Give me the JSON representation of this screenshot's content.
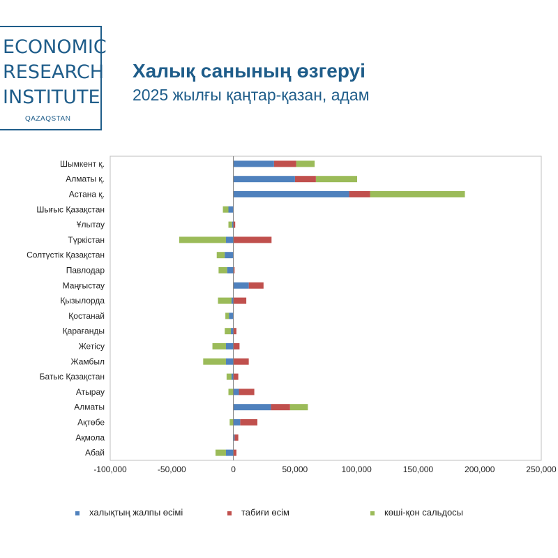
{
  "logo": {
    "lines": [
      "ECONOMIC",
      "RESEARCH",
      "INSTITUTE"
    ],
    "sub": "QAZAQSTAN"
  },
  "header": {
    "title": "Халық санының өзгеруі",
    "subtitle": "2025 жылғы қаңтар-қазан, адам"
  },
  "colors": {
    "total": "#4f81bd",
    "natural": "#c0504d",
    "migration": "#9bbb59",
    "brand": "#1f5d8a"
  },
  "chart_data": {
    "type": "bar",
    "orientation": "horizontal",
    "stacked": true,
    "title": "Халық санының өзгеруі",
    "subtitle": "2025 жылғы қаңтар-қазан, адам",
    "xlim": [
      -100000,
      250000
    ],
    "xticks": [
      -100000,
      -50000,
      0,
      50000,
      100000,
      150000,
      200000,
      250000
    ],
    "xtick_labels": [
      "-100,000",
      "-50,000",
      "0",
      "50,000",
      "100,000",
      "150,000",
      "200,000",
      "250,000"
    ],
    "categories": [
      "Шымкент қ.",
      "Алматы қ.",
      "Астана қ.",
      "Шығыс Қазақстан",
      "Ұлытау",
      "Түркістан",
      "Солтүстік Қазақстан",
      "Павлодар",
      "Маңғыстау",
      "Қызылорда",
      "Қостанай",
      "Қарағанды",
      "Жетісу",
      "Жамбыл",
      "Батыс Қазақстан",
      "Атырау",
      "Алматы",
      "Ақтөбе",
      "Ақмола",
      "Абай"
    ],
    "series": [
      {
        "name": "халықтың жалпы өсімі",
        "color": "#4f81bd",
        "values": [
          33000,
          50000,
          94000,
          -4000,
          -1000,
          -6000,
          -7000,
          -5000,
          12500,
          -1500,
          -3500,
          -2000,
          -6000,
          -6000,
          -1500,
          4500,
          30500,
          5500,
          1000,
          -6000
        ]
      },
      {
        "name": "табиғи өсім",
        "color": "#c0504d",
        "values": [
          18000,
          17000,
          17000,
          0,
          1500,
          31000,
          0,
          1000,
          12000,
          10500,
          0,
          2500,
          5000,
          12500,
          4000,
          12500,
          15500,
          14000,
          3000,
          2500
        ]
      },
      {
        "name": "көші-қон сальдосы",
        "color": "#9bbb59",
        "values": [
          15000,
          33500,
          77000,
          -4500,
          -3000,
          -38000,
          -6500,
          -7000,
          0,
          -11000,
          -3000,
          -5000,
          -11000,
          -18500,
          -4000,
          -4000,
          14500,
          -3000,
          0,
          -8500
        ]
      }
    ],
    "legend_position": "bottom",
    "grid": false
  }
}
